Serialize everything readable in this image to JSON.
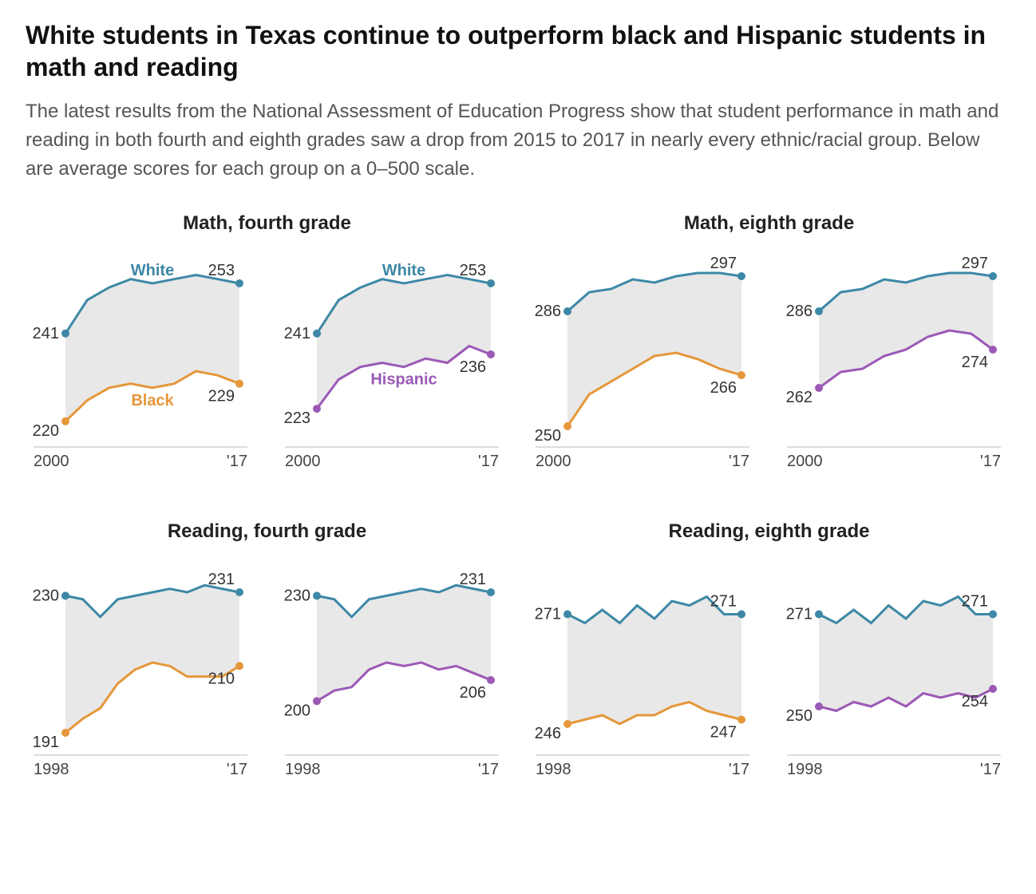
{
  "title": "White students in Texas continue to outperform black and Hispanic students in math and reading",
  "lead": "The latest results from the National Assessment of Education Progress show that student performance in math and reading in both fourth and eighth grades saw a drop from 2015 to 2017 in nearly every ethnic/racial group. Below are average scores for each group on a 0–500 scale.",
  "colors": {
    "white": "#3d88a6",
    "black": "#e5973a",
    "hispanic": "#9b59b6",
    "gap": "#e8e8e8",
    "axis": "#bbbbbb",
    "text": "#333333"
  },
  "line_width": 3,
  "dot_radius": 5,
  "row_titles": {
    "math4": "Math, fourth grade",
    "math8": "Math, eighth grade",
    "read4": "Reading, fourth grade",
    "read8": "Reading, eighth grade"
  },
  "panels": [
    {
      "id": "math4-black",
      "type": "line-gap",
      "x_start": "2000",
      "x_end": "'17",
      "year_range": [
        2000,
        2017
      ],
      "y_range": [
        215,
        257
      ],
      "top_series": {
        "name": "White",
        "label": "White",
        "label_color": "#3d88a6",
        "start_val": 241,
        "end_val": 253,
        "values": [
          241,
          249,
          252,
          254,
          253,
          254,
          255,
          254,
          253
        ]
      },
      "bottom_series": {
        "name": "Black",
        "label": "Black",
        "label_color": "#e5973a",
        "start_val": 220,
        "end_val": 229,
        "values": [
          220,
          225,
          228,
          229,
          228,
          229,
          232,
          231,
          229
        ]
      },
      "series_label_pos": "mid"
    },
    {
      "id": "math4-hisp",
      "type": "line-gap",
      "x_start": "2000",
      "x_end": "'17",
      "year_range": [
        2000,
        2017
      ],
      "y_range": [
        215,
        257
      ],
      "top_series": {
        "name": "White",
        "label": "White",
        "label_color": "#3d88a6",
        "start_val": 241,
        "end_val": 253,
        "values": [
          241,
          249,
          252,
          254,
          253,
          254,
          255,
          254,
          253
        ]
      },
      "bottom_series": {
        "name": "Hispanic",
        "label": "Hispanic",
        "label_color": "#9b59b6",
        "start_val": 223,
        "end_val": 236,
        "values": [
          223,
          230,
          233,
          234,
          233,
          235,
          234,
          238,
          236
        ]
      },
      "series_label_pos": "mid"
    },
    {
      "id": "math8-black",
      "type": "line-gap",
      "x_start": "2000",
      "x_end": "'17",
      "year_range": [
        2000,
        2017
      ],
      "y_range": [
        245,
        300
      ],
      "top_series": {
        "name": "White",
        "start_val": 286,
        "end_val": 297,
        "values": [
          286,
          292,
          293,
          296,
          295,
          297,
          298,
          298,
          297
        ]
      },
      "bottom_series": {
        "name": "Black",
        "start_val": 250,
        "end_val": 266,
        "values": [
          250,
          260,
          264,
          268,
          272,
          273,
          271,
          268,
          266
        ]
      }
    },
    {
      "id": "math8-hisp",
      "type": "line-gap",
      "x_start": "2000",
      "x_end": "'17",
      "year_range": [
        2000,
        2017
      ],
      "y_range": [
        245,
        300
      ],
      "top_series": {
        "name": "White",
        "start_val": 286,
        "end_val": 297,
        "values": [
          286,
          292,
          293,
          296,
          295,
          297,
          298,
          298,
          297
        ]
      },
      "bottom_series": {
        "name": "Hispanic",
        "start_val": 262,
        "end_val": 274,
        "values": [
          262,
          267,
          268,
          272,
          274,
          278,
          280,
          279,
          274
        ]
      }
    },
    {
      "id": "read4-black",
      "type": "line-gap",
      "x_start": "1998",
      "x_end": "'17",
      "year_range": [
        1998,
        2017
      ],
      "y_range": [
        186,
        236
      ],
      "top_series": {
        "name": "White",
        "start_val": 230,
        "end_val": 231,
        "values": [
          230,
          229,
          224,
          229,
          230,
          231,
          232,
          231,
          233,
          232,
          231
        ]
      },
      "bottom_series": {
        "name": "Black",
        "start_val": 191,
        "end_val": 210,
        "values": [
          191,
          195,
          198,
          205,
          209,
          211,
          210,
          207,
          207,
          207,
          210
        ]
      }
    },
    {
      "id": "read4-hisp",
      "type": "line-gap",
      "x_start": "1998",
      "x_end": "'17",
      "year_range": [
        1998,
        2017
      ],
      "y_range": [
        186,
        236
      ],
      "top_series": {
        "name": "White",
        "start_val": 230,
        "end_val": 231,
        "values": [
          230,
          229,
          224,
          229,
          230,
          231,
          232,
          231,
          233,
          232,
          231
        ]
      },
      "bottom_series": {
        "name": "Hispanic",
        "start_val": 200,
        "end_val": 206,
        "values": [
          200,
          203,
          204,
          209,
          211,
          210,
          211,
          209,
          210,
          208,
          206
        ]
      }
    },
    {
      "id": "read8-black",
      "type": "line-gap",
      "x_start": "1998",
      "x_end": "'17",
      "year_range": [
        1998,
        2017
      ],
      "y_range": [
        240,
        280
      ],
      "top_series": {
        "name": "White",
        "start_val": 271,
        "end_val": 271,
        "values": [
          271,
          269,
          272,
          269,
          273,
          270,
          274,
          273,
          275,
          271,
          271
        ]
      },
      "bottom_series": {
        "name": "Black",
        "start_val": 246,
        "end_val": 247,
        "values": [
          246,
          247,
          248,
          246,
          248,
          248,
          250,
          251,
          249,
          248,
          247
        ]
      }
    },
    {
      "id": "read8-hisp",
      "type": "line-gap",
      "x_start": "1998",
      "x_end": "'17",
      "year_range": [
        1998,
        2017
      ],
      "y_range": [
        240,
        280
      ],
      "top_series": {
        "name": "White",
        "start_val": 271,
        "end_val": 271,
        "values": [
          271,
          269,
          272,
          269,
          273,
          270,
          274,
          273,
          275,
          271,
          271
        ]
      },
      "bottom_series": {
        "name": "Hispanic",
        "start_val": 250,
        "end_val": 254,
        "values": [
          250,
          249,
          251,
          250,
          252,
          250,
          253,
          252,
          253,
          252,
          254
        ]
      }
    }
  ]
}
